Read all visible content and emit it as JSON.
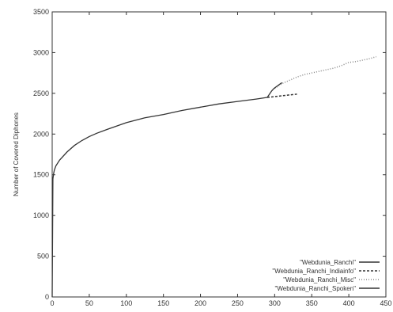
{
  "chart_data": {
    "type": "line",
    "title": "",
    "xlabel": "",
    "ylabel": "Number of Covered Diphones",
    "xlim": [
      0,
      450
    ],
    "ylim": [
      0,
      3500
    ],
    "xticks": [
      0,
      50,
      100,
      150,
      200,
      250,
      300,
      350,
      400,
      450
    ],
    "yticks": [
      0,
      500,
      1000,
      1500,
      2000,
      2500,
      3000,
      3500
    ],
    "grid": false,
    "legend_position": "bottom-right",
    "series": [
      {
        "name": "\"Webdunia_Ranchi\"",
        "style": "solid",
        "color": "#333333",
        "x": [
          0,
          1,
          2,
          3,
          5,
          10,
          20,
          30,
          40,
          50,
          60,
          75,
          100,
          125,
          150,
          175,
          200,
          225,
          250,
          275,
          290
        ],
        "y": [
          0,
          1450,
          1520,
          1560,
          1610,
          1680,
          1780,
          1860,
          1920,
          1970,
          2010,
          2060,
          2140,
          2200,
          2240,
          2290,
          2330,
          2370,
          2400,
          2430,
          2450
        ]
      },
      {
        "name": "\"Webdunia_Ranchi_Indiainfo\"",
        "style": "dashed",
        "color": "#333333",
        "x": [
          290,
          300,
          310,
          320,
          330
        ],
        "y": [
          2450,
          2460,
          2470,
          2480,
          2490
        ]
      },
      {
        "name": "\"Webdunia_Ranchi_Misc\"",
        "style": "dotted",
        "color": "#888888",
        "x": [
          300,
          310,
          320,
          330,
          340,
          350,
          360,
          370,
          380,
          390,
          400,
          410,
          420,
          430,
          437
        ],
        "y": [
          2560,
          2620,
          2660,
          2700,
          2730,
          2750,
          2770,
          2790,
          2810,
          2840,
          2880,
          2890,
          2910,
          2930,
          2950
        ]
      },
      {
        "name": "\"Webdunia_Ranchi_Spoken\"",
        "style": "solid",
        "color": "#333333",
        "x": [
          290,
          293,
          296,
          299,
          302,
          305,
          308,
          310
        ],
        "y": [
          2450,
          2490,
          2530,
          2560,
          2580,
          2600,
          2620,
          2630
        ]
      }
    ]
  }
}
